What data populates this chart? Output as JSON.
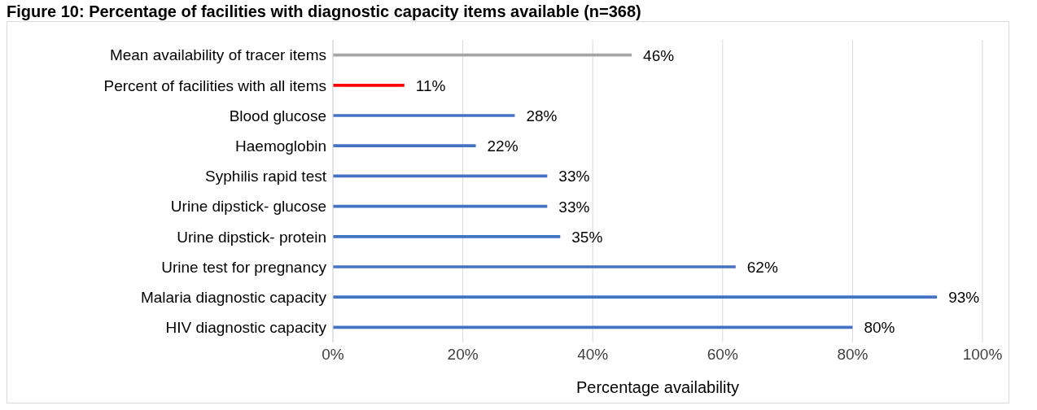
{
  "chart_data": {
    "type": "bar",
    "orientation": "horizontal",
    "title": "Figure 10: Percentage of facilities with diagnostic capacity items available (n=368)",
    "xlabel": "Percentage availability",
    "categories": [
      "Mean availability of tracer items",
      "Percent of facilities with all items",
      "Blood glucose",
      "Haemoglobin",
      "Syphilis rapid test",
      "Urine dipstick- glucose",
      "Urine dipstick- protein",
      "Urine test for pregnancy",
      "Malaria diagnostic capacity",
      "HIV diagnostic capacity"
    ],
    "values": [
      46,
      11,
      28,
      22,
      33,
      33,
      35,
      62,
      93,
      80
    ],
    "colors": [
      "#a5a5a5",
      "#ff0000",
      "#4472c4",
      "#4472c4",
      "#4472c4",
      "#4472c4",
      "#4472c4",
      "#4472c4",
      "#4472c4",
      "#4472c4"
    ],
    "value_labels": [
      "46%",
      "11%",
      "28%",
      "22%",
      "33%",
      "33%",
      "35%",
      "62%",
      "93%",
      "80%"
    ],
    "xlim": [
      0,
      100
    ],
    "xticks": [
      {
        "value": 0,
        "label": "0%"
      },
      {
        "value": 20,
        "label": "20%"
      },
      {
        "value": 40,
        "label": "40%"
      },
      {
        "value": 60,
        "label": "60%"
      },
      {
        "value": 80,
        "label": "80%"
      },
      {
        "value": 100,
        "label": "100%"
      }
    ],
    "grid": "x"
  }
}
